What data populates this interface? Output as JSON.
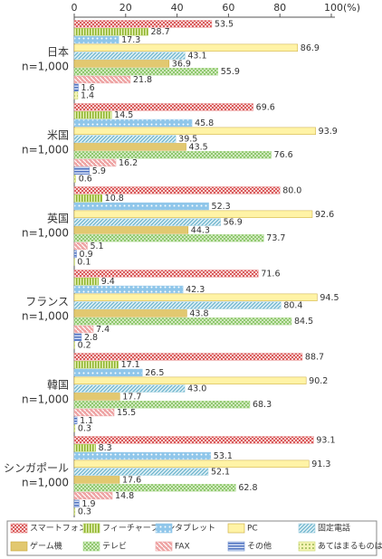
{
  "chart_data": {
    "type": "bar",
    "orientation": "horizontal",
    "categories": [
      "日本",
      "米国",
      "英国",
      "フランス",
      "韓国",
      "シンガポール"
    ],
    "sample_labels": [
      "n=1,000",
      "n=1,000",
      "n=1,000",
      "n=1,000",
      "n=1,000",
      "n=1,000"
    ],
    "xlim": [
      0,
      100
    ],
    "xticks": [
      0,
      20,
      40,
      60,
      80,
      {
        "value": 100,
        "label": "100(%)"
      }
    ],
    "series": [
      {
        "name": "スマートフォン",
        "color": "#e98b8b",
        "pattern": "check",
        "values": [
          53.5,
          69.6,
          80.0,
          71.6,
          88.7,
          93.1
        ],
        "value_labels": [
          "53.5",
          "69.6",
          "80.0",
          "71.6",
          "88.7",
          "93.1"
        ]
      },
      {
        "name": "フィーチャーフォン",
        "color": "#a8c84a",
        "pattern": "vstripe",
        "values": [
          28.7,
          14.5,
          10.8,
          9.4,
          17.1,
          8.3
        ],
        "value_labels": [
          "28.7",
          "14.5",
          "10.8",
          "9.4",
          "17.1",
          "8.3"
        ]
      },
      {
        "name": "タブレット",
        "color": "#8fc6ea",
        "pattern": "dots",
        "values": [
          17.3,
          45.8,
          52.3,
          42.3,
          26.5,
          53.1
        ],
        "value_labels": [
          "17.3",
          "45.8",
          "52.3",
          "42.3",
          "26.5",
          "53.1"
        ]
      },
      {
        "name": "PC",
        "color": "#fff3a6",
        "pattern": "solid",
        "values": [
          86.9,
          93.9,
          92.6,
          94.5,
          90.2,
          91.3
        ],
        "value_labels": [
          "86.9",
          "93.9",
          "92.6",
          "94.5",
          "90.2",
          "91.3"
        ]
      },
      {
        "name": "固定電話",
        "color": "#9fcfe0",
        "pattern": "diag",
        "values": [
          43.1,
          39.5,
          56.9,
          80.4,
          43.0,
          52.1
        ],
        "value_labels": [
          "43.1",
          "39.5",
          "56.9",
          "80.4",
          "43.0",
          "52.1"
        ]
      },
      {
        "name": "ゲーム機",
        "color": "#e2c870",
        "pattern": "solid",
        "values": [
          36.9,
          43.5,
          44.3,
          43.8,
          17.7,
          17.6
        ],
        "value_labels": [
          "36.9",
          "43.5",
          "44.3",
          "43.8",
          "17.7",
          "17.6"
        ]
      },
      {
        "name": "テレビ",
        "color": "#a9d98a",
        "pattern": "cross",
        "values": [
          55.9,
          76.6,
          73.7,
          84.5,
          68.3,
          62.8
        ],
        "value_labels": [
          "55.9",
          "76.6",
          "73.7",
          "84.5",
          "68.3",
          "62.8"
        ]
      },
      {
        "name": "FAX",
        "color": "#eea3a3",
        "pattern": "rdiag",
        "values": [
          21.8,
          16.2,
          5.1,
          7.4,
          15.5,
          14.8
        ],
        "value_labels": [
          "21.8",
          "16.2",
          "5.1",
          "7.4",
          "15.5",
          "14.8"
        ]
      },
      {
        "name": "その他",
        "color": "#6e8fcf",
        "pattern": "hstripe",
        "values": [
          1.6,
          5.9,
          0.9,
          2.8,
          1.1,
          1.9
        ],
        "value_labels": [
          "1.6",
          "5.9",
          "0.9",
          "2.8",
          "1.1",
          "1.9"
        ]
      },
      {
        "name": "あてはまるものはない",
        "color": "#c6d86a",
        "pattern": "ydots",
        "values": [
          1.4,
          0.6,
          0.1,
          0.2,
          0.3,
          0.3
        ],
        "value_labels": [
          "1.4",
          "0.6",
          "0.1",
          "0.2",
          "0.3",
          "0.3"
        ]
      }
    ]
  }
}
